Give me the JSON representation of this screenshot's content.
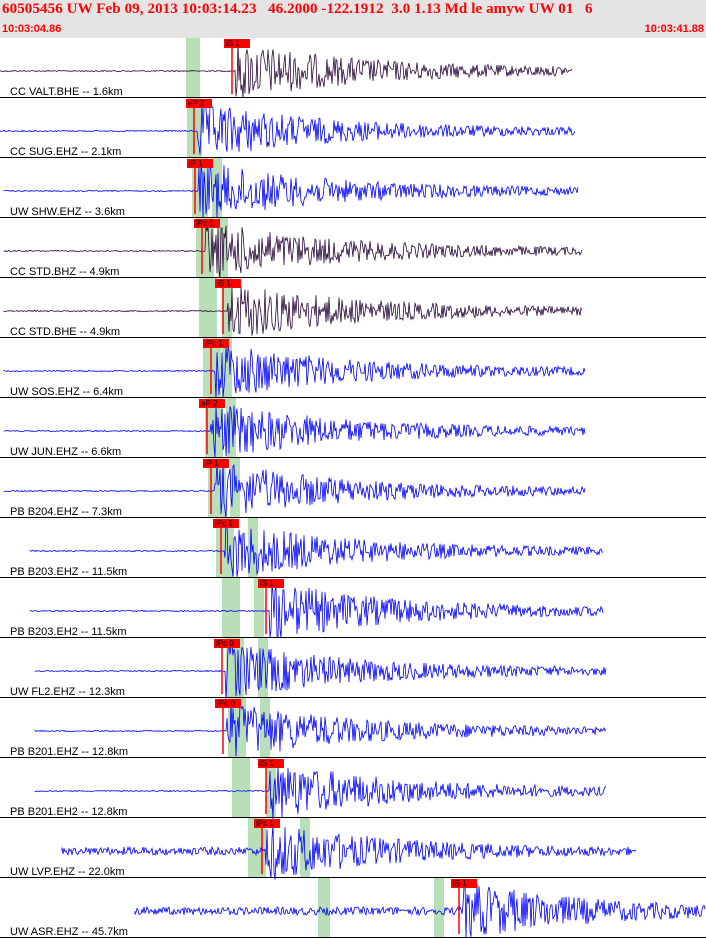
{
  "header": {
    "title": "60505456 UW Feb 09, 2013 10:03:14.23   46.2000 -122.1912  3.0 1.13 Md le amyw UW 01   6",
    "time_start": "10:03:04.86",
    "time_end": "10:03:41.88"
  },
  "colors": {
    "background": "#ffffff",
    "header_bg": "#e4e4e4",
    "title": "#ff0000",
    "pick": "#ff0000",
    "window": "#b9dfb9",
    "trace_blue": "#0000ff",
    "trace_dark": "#2a0a3a"
  },
  "traces": [
    {
      "label": "CC VALT.BHE -- 1.6km",
      "pick": "iS 1",
      "color": "#2a0a3a",
      "pick_t": 0.3286
    },
    {
      "label": "CC SUG.EHZ -- 2.1km",
      "pick": "eP 2",
      "color": "#0000ff",
      "pick_t": 0.2748
    },
    {
      "label": "UW SHW.EHZ -- 3.6km",
      "pick": "iP 1",
      "color": "#0000ff",
      "pick_t": 0.2763
    },
    {
      "label": "CC STD.BHZ -- 4.9km",
      "pick": "iPc 1",
      "color": "#2a0a3a",
      "pick_t": 0.2857
    },
    {
      "label": "CC STD.BHE -- 4.9km",
      "pick": "iS 1",
      "color": "#2a0a3a",
      "pick_t": 0.3159
    },
    {
      "label": "UW SOS.EHZ -- 6.4km",
      "pick": "iPc 1",
      "color": "#0000ff",
      "pick_t": 0.2994
    },
    {
      "label": "UW JUN.EHZ -- 6.6km",
      "pick": "eP 2",
      "color": "#0000ff",
      "pick_t": 0.2932
    },
    {
      "label": "PB B204.EHZ -- 7.3km",
      "pick": "iP 1",
      "color": "#0000ff",
      "pick_t": 0.2989
    },
    {
      "label": "PB B203.EHZ -- 11.5km",
      "pick": "iPc 1",
      "color": "#0000ff",
      "pick_t": 0.3126
    },
    {
      "label": "PB B203.EH2 -- 11.5km",
      "pick": "iS 1",
      "color": "#0000ff",
      "pick_t": 0.3774
    },
    {
      "label": "UW FL2.EHZ -- 12.3km",
      "pick": "iPc 0",
      "color": "#0000ff",
      "pick_t": 0.3151
    },
    {
      "label": "PB B201.EHZ -- 12.8km",
      "pick": "iPc 0",
      "color": "#0000ff",
      "pick_t": 0.3163
    },
    {
      "label": "PB B201.EH2 -- 12.8km",
      "pick": "iS 1",
      "color": "#0000ff",
      "pick_t": 0.3761
    },
    {
      "label": "UW LVP.EHZ -- 22.0km",
      "pick": "iPc 1",
      "color": "#0000ff",
      "pick_t": 0.3711
    },
    {
      "label": "UW ASR.EHZ -- 45.7km",
      "pick": "iS 1",
      "color": "#0000ff",
      "pick_t": 0.6501
    }
  ]
}
